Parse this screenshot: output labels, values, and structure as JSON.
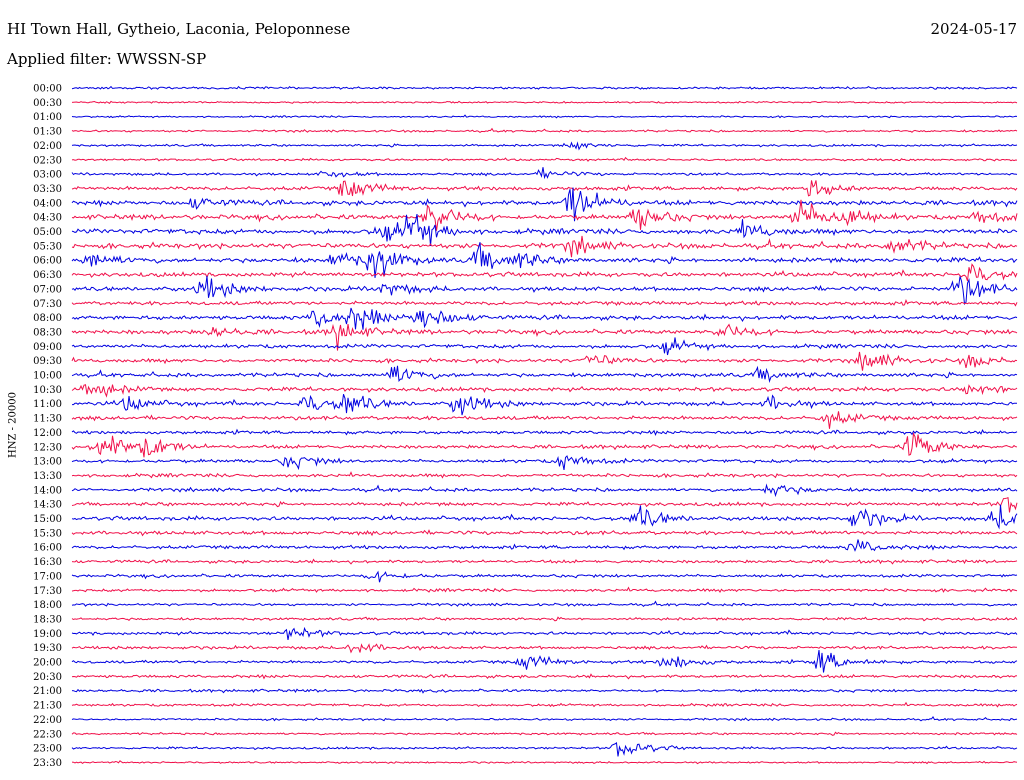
{
  "header": {
    "station": "HI Town Hall, Gytheio, Laconia, Peloponnese",
    "date": "2024-05-17",
    "filter": "Applied filter: WWSSN-SP"
  },
  "chart_data": {
    "type": "line",
    "title": "HI Town Hall, Gytheio, Laconia, Peloponnese",
    "subtitle": "Applied filter: WWSSN-SP",
    "ylabel": "HNZ - 20000",
    "xlabel": "",
    "colors": {
      "odd_trace": "#0000e0",
      "even_trace": "#f0104a"
    },
    "row_labels": [
      "00:00",
      "00:30",
      "01:00",
      "01:30",
      "02:00",
      "02:30",
      "03:00",
      "03:30",
      "04:00",
      "04:30",
      "05:00",
      "05:30",
      "06:00",
      "06:30",
      "07:00",
      "07:30",
      "08:00",
      "08:30",
      "09:00",
      "09:30",
      "10:00",
      "10:30",
      "11:00",
      "11:30",
      "12:00",
      "12:30",
      "13:00",
      "13:30",
      "14:00",
      "14:30",
      "15:00",
      "15:30",
      "16:00",
      "16:30",
      "17:00",
      "17:30",
      "18:00",
      "18:30",
      "19:00",
      "19:30",
      "20:00",
      "20:30",
      "21:00",
      "21:30",
      "22:00",
      "22:30",
      "23:00",
      "23:30"
    ],
    "noise_level": [
      0.25,
      0.2,
      0.2,
      0.25,
      0.25,
      0.25,
      0.3,
      0.45,
      0.55,
      0.55,
      0.6,
      0.6,
      0.55,
      0.5,
      0.5,
      0.45,
      0.5,
      0.5,
      0.45,
      0.45,
      0.45,
      0.45,
      0.45,
      0.45,
      0.4,
      0.4,
      0.4,
      0.4,
      0.4,
      0.4,
      0.45,
      0.45,
      0.4,
      0.35,
      0.35,
      0.35,
      0.3,
      0.3,
      0.35,
      0.35,
      0.35,
      0.35,
      0.3,
      0.3,
      0.25,
      0.25,
      0.25,
      0.2
    ],
    "events": [
      [],
      [],
      [],
      [],
      [
        [
          0.53,
          0.4
        ]
      ],
      [],
      [
        [
          0.27,
          0.4
        ],
        [
          0.5,
          0.5
        ]
      ],
      [
        [
          0.29,
          1.2
        ],
        [
          0.78,
          1.0
        ]
      ],
      [
        [
          0.53,
          2.2
        ],
        [
          0.13,
          0.6
        ]
      ],
      [
        [
          0.38,
          2.0
        ],
        [
          0.6,
          1.4
        ],
        [
          0.77,
          2.0
        ],
        [
          0.82,
          1.0
        ],
        [
          0.96,
          0.8
        ]
      ],
      [
        [
          0.36,
          2.2
        ],
        [
          0.33,
          1.0
        ],
        [
          0.71,
          1.0
        ]
      ],
      [
        [
          0.53,
          0.9
        ],
        [
          0.87,
          1.0
        ]
      ],
      [
        [
          0.02,
          0.9
        ],
        [
          0.28,
          1.0
        ],
        [
          0.32,
          1.8
        ],
        [
          0.43,
          1.4
        ],
        [
          0.47,
          0.8
        ]
      ],
      [
        [
          0.95,
          1.2
        ]
      ],
      [
        [
          0.14,
          1.4
        ],
        [
          0.33,
          0.8
        ],
        [
          0.94,
          1.8
        ]
      ],
      [],
      [
        [
          0.26,
          1.2
        ],
        [
          0.3,
          1.4
        ],
        [
          0.37,
          1.8
        ]
      ],
      [
        [
          0.15,
          0.6
        ],
        [
          0.28,
          1.2
        ],
        [
          0.69,
          1.0
        ]
      ],
      [
        [
          0.63,
          0.8
        ]
      ],
      [
        [
          0.55,
          0.8
        ],
        [
          0.84,
          1.2
        ],
        [
          0.95,
          0.8
        ]
      ],
      [
        [
          0.34,
          1.2
        ],
        [
          0.73,
          0.7
        ]
      ],
      [
        [
          0.02,
          1.2
        ],
        [
          0.95,
          0.8
        ]
      ],
      [
        [
          0.06,
          0.8
        ],
        [
          0.25,
          1.0
        ],
        [
          0.29,
          1.2
        ],
        [
          0.41,
          1.4
        ],
        [
          0.74,
          0.8
        ]
      ],
      [
        [
          0.8,
          1.0
        ]
      ],
      [],
      [
        [
          0.03,
          1.8
        ],
        [
          0.08,
          1.2
        ],
        [
          0.89,
          1.8
        ]
      ],
      [
        [
          0.23,
          0.8
        ],
        [
          0.52,
          1.0
        ]
      ],
      [],
      [
        [
          0.74,
          0.8
        ]
      ],
      [
        [
          0.99,
          1.0
        ]
      ],
      [
        [
          0.6,
          1.2
        ],
        [
          0.83,
          1.2
        ],
        [
          0.98,
          1.4
        ]
      ],
      [],
      [
        [
          0.83,
          0.8
        ]
      ],
      [],
      [
        [
          0.32,
          0.6
        ]
      ],
      [],
      [],
      [],
      [
        [
          0.23,
          0.8
        ]
      ],
      [
        [
          0.3,
          0.7
        ]
      ],
      [
        [
          0.48,
          0.9
        ],
        [
          0.63,
          1.0
        ],
        [
          0.79,
          1.4
        ]
      ],
      [],
      [],
      [],
      [],
      [],
      [
        [
          0.58,
          1.2
        ]
      ],
      []
    ]
  }
}
